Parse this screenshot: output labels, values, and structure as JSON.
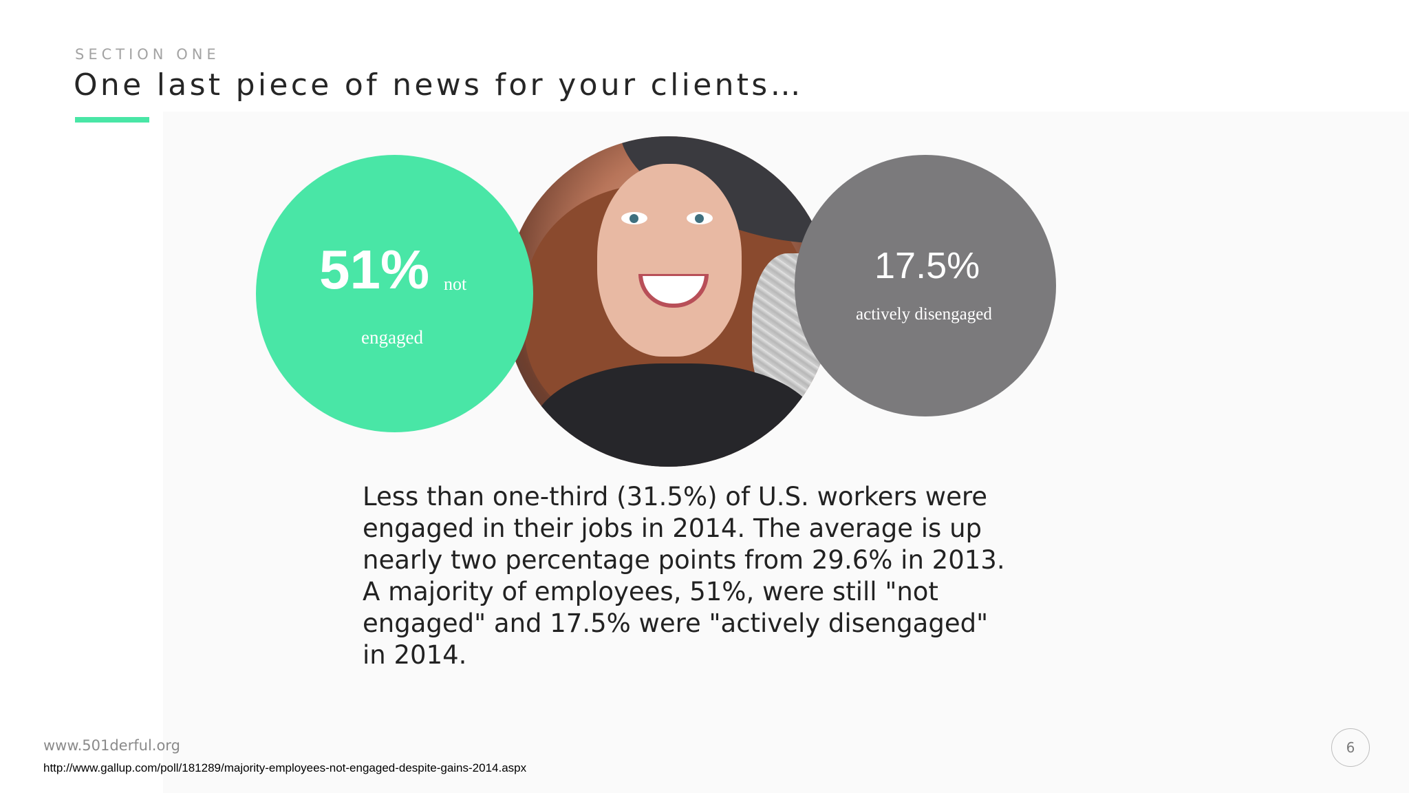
{
  "header": {
    "section_label": "SECTION ONE",
    "title": "One last piece of news for your clients…"
  },
  "stats": {
    "not_engaged": {
      "value": "51%",
      "label_part1": "not",
      "label_part2": "engaged",
      "color": "#49e6a6"
    },
    "actively_disengaged": {
      "value": "17.5%",
      "label": "actively disengaged",
      "color": "#7b7a7c"
    }
  },
  "body": {
    "lines": [
      "Less than one-third (31.5%) of U.S. workers were",
      "engaged in their jobs in 2014. The average is up",
      "nearly two percentage points from 29.6% in 2013.",
      "A majority of employees, 51%, were still \"not",
      "engaged\" and 17.5% were \"actively disengaged\"",
      "in 2014."
    ]
  },
  "footer": {
    "website": "www.501derful.org",
    "source_url": "http://www.gallup.com/poll/181289/majority-employees-not-engaged-despite-gains-2014.aspx",
    "page_number": "6"
  },
  "colors": {
    "accent": "#49e6a6",
    "grey_circle": "#7b7a7c"
  }
}
